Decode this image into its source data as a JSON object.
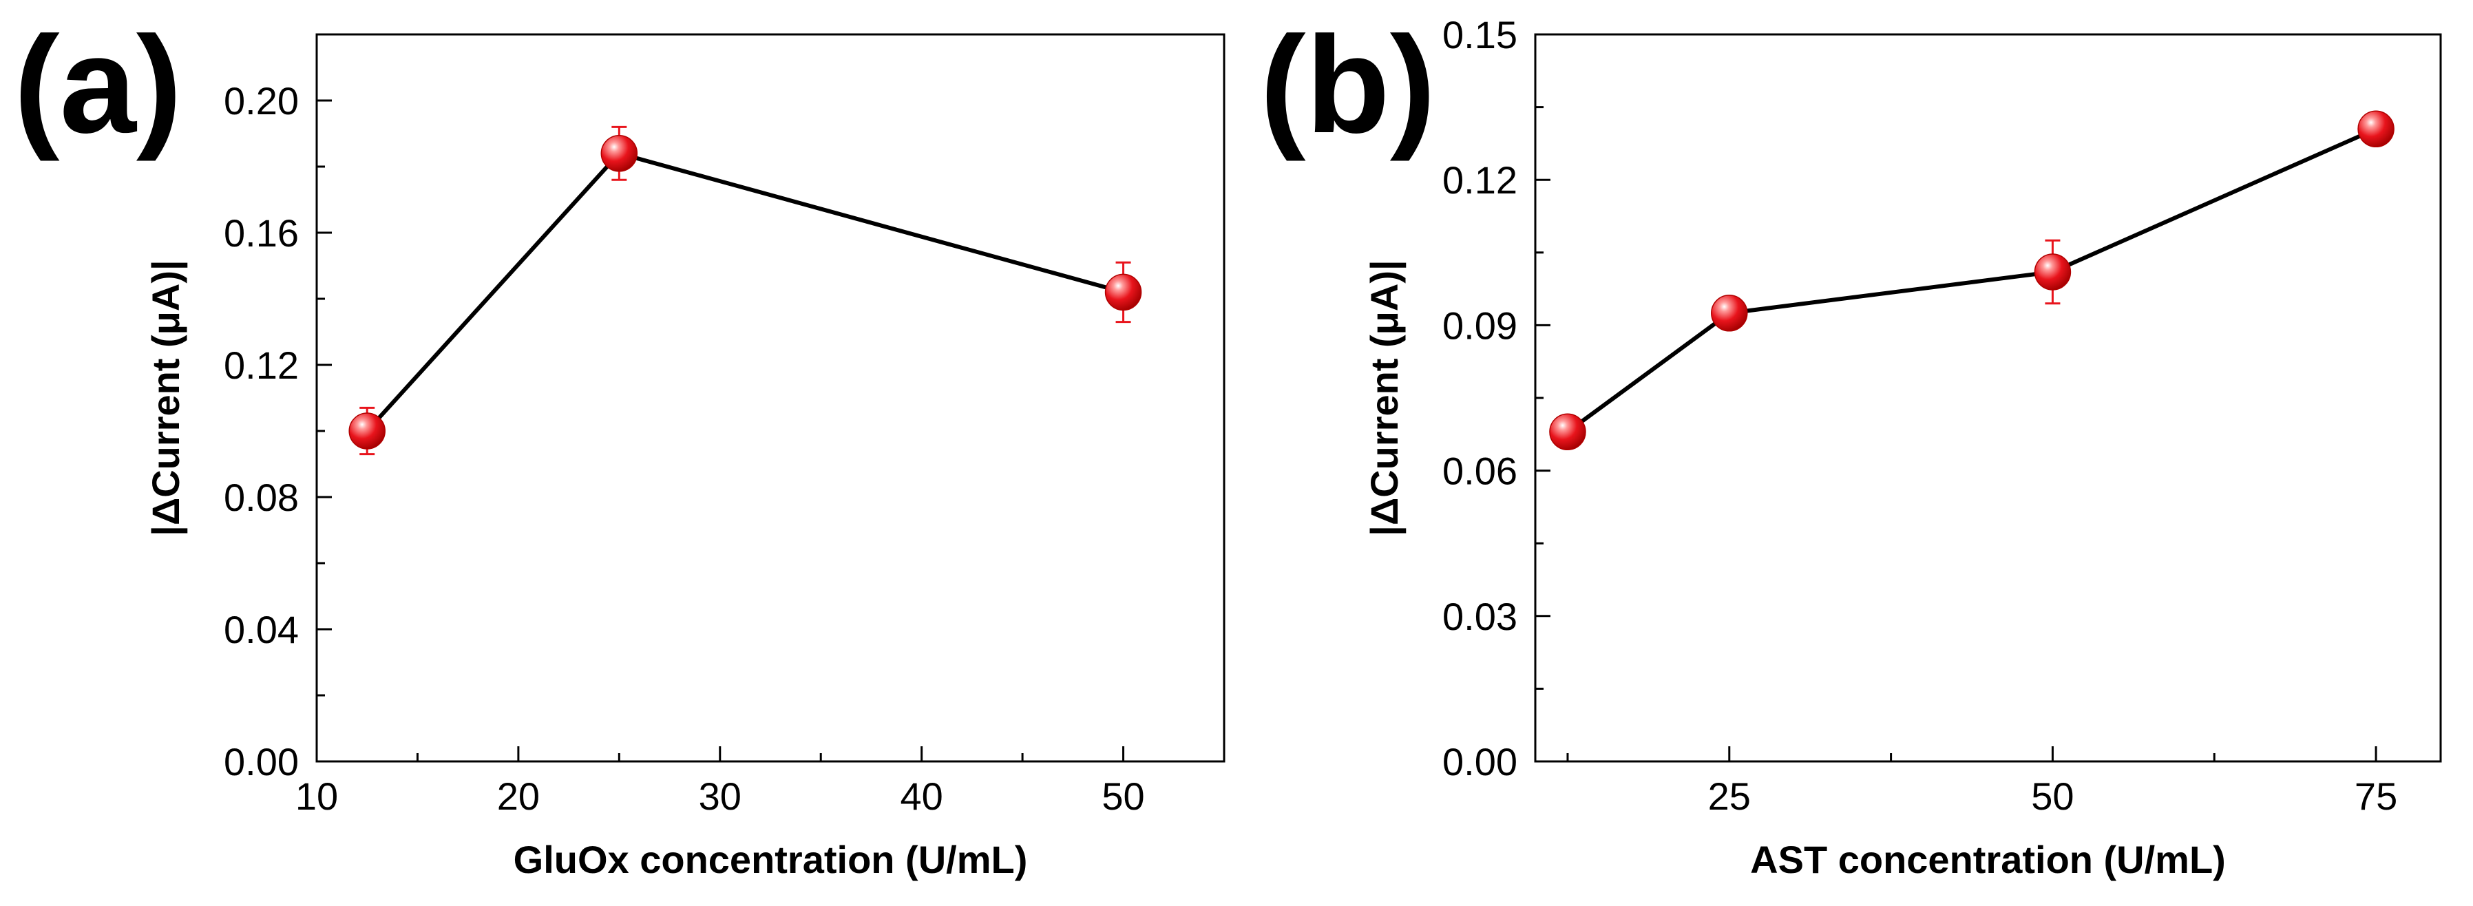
{
  "chart_data": [
    {
      "type": "line",
      "panel_label": "(a)",
      "xlabel": "GluOx concentration (U/mL)",
      "ylabel": "|ΔCurrent (μA)|",
      "xlim": [
        10,
        55
      ],
      "ylim": [
        0,
        0.22
      ],
      "x_ticks": [
        "10",
        "20",
        "30",
        "40",
        "50"
      ],
      "y_ticks": [
        "0.00",
        "0.04",
        "0.08",
        "0.12",
        "0.16",
        "0.20"
      ],
      "series": [
        {
          "name": "GluOx",
          "x": [
            12.5,
            25,
            50
          ],
          "y": [
            0.1,
            0.184,
            0.142
          ],
          "y_error": [
            0.007,
            0.008,
            0.009
          ]
        }
      ],
      "line_color": "#000000",
      "marker_color": "#e8141c",
      "grid": false
    },
    {
      "type": "line",
      "panel_label": "(b)",
      "xlabel": "AST concentration (U/mL)",
      "ylabel": "|ΔCurrent (μA)|",
      "xlim": [
        10,
        80
      ],
      "ylim": [
        0,
        0.15
      ],
      "x_ticks": [
        "25",
        "50",
        "75"
      ],
      "y_ticks": [
        "0.00",
        "0.03",
        "0.06",
        "0.09",
        "0.12",
        "0.15"
      ],
      "series": [
        {
          "name": "AST",
          "x": [
            12.5,
            25,
            50,
            75
          ],
          "y": [
            0.068,
            0.0925,
            0.101,
            0.1305
          ],
          "y_error": [
            0.002,
            0.003,
            0.0065,
            0.002
          ]
        }
      ],
      "line_color": "#000000",
      "marker_color": "#e8141c",
      "grid": false
    }
  ]
}
